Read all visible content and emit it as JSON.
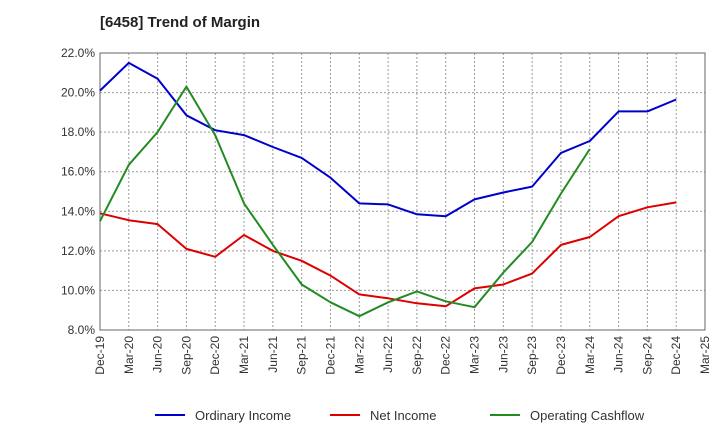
{
  "chart_data": {
    "type": "line",
    "title": "[6458]  Trend of Margin",
    "categories": [
      "Dec-19",
      "Mar-20",
      "Jun-20",
      "Sep-20",
      "Dec-20",
      "Mar-21",
      "Jun-21",
      "Sep-21",
      "Dec-21",
      "Mar-22",
      "Jun-22",
      "Sep-22",
      "Dec-22",
      "Mar-23",
      "Jun-23",
      "Sep-23",
      "Dec-23",
      "Mar-24",
      "Jun-24",
      "Sep-24",
      "Dec-24",
      "Mar-25"
    ],
    "y_ticks": [
      "8.0%",
      "10.0%",
      "12.0%",
      "14.0%",
      "16.0%",
      "18.0%",
      "20.0%",
      "22.0%"
    ],
    "ylim": [
      8,
      22
    ],
    "grid": true,
    "legend_position": "bottom",
    "series": [
      {
        "name": "Ordinary Income",
        "color": "#0000cc",
        "values": [
          20.1,
          21.5,
          20.7,
          18.85,
          18.1,
          17.85,
          17.25,
          16.7,
          15.7,
          14.4,
          14.35,
          13.85,
          13.75,
          14.6,
          14.95,
          15.25,
          16.95,
          17.55,
          19.05,
          19.05,
          19.65,
          null
        ]
      },
      {
        "name": "Net Income",
        "color": "#dd0000",
        "values": [
          13.9,
          13.55,
          13.35,
          12.1,
          11.7,
          12.8,
          12.0,
          11.5,
          10.75,
          9.8,
          9.6,
          9.35,
          9.2,
          10.1,
          10.3,
          10.85,
          12.3,
          12.7,
          13.75,
          14.2,
          14.45,
          null
        ]
      },
      {
        "name": "Operating Cashflow",
        "color": "#228b22",
        "values": [
          13.5,
          16.35,
          18.0,
          20.3,
          17.85,
          14.4,
          12.3,
          10.3,
          9.4,
          8.7,
          9.4,
          9.95,
          9.45,
          9.15,
          10.9,
          12.45,
          14.9,
          17.15,
          null,
          null,
          null,
          null
        ]
      }
    ]
  }
}
